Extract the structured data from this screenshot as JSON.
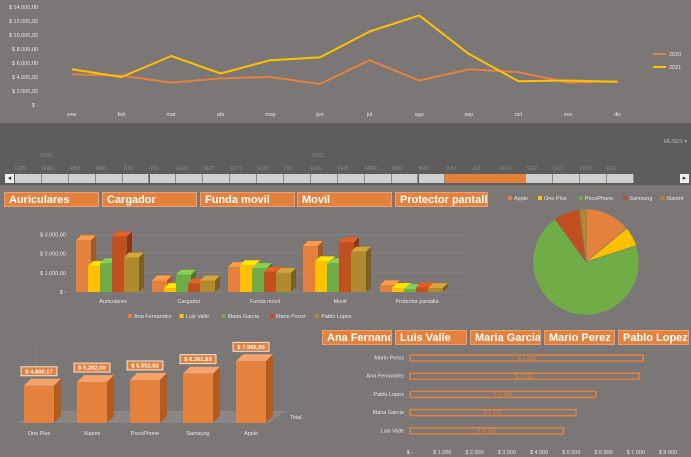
{
  "colors": {
    "bg": "#7b7777",
    "orange": "#e4813d",
    "orange_dark": "#c0501e",
    "yellow": "#ffc000",
    "green": "#70ad47",
    "brown": "#9e480e",
    "gold": "#b08a2e"
  },
  "line_chart": {
    "type": "line",
    "categories": [
      "ene",
      "feb",
      "mar",
      "abr",
      "may",
      "jun",
      "jul",
      "ago",
      "sep",
      "oct",
      "nov",
      "dic"
    ],
    "y_ticks": [
      "$ 14.000,00",
      "$ 12.000,00",
      "$ 10.000,00",
      "$ 8.000,00",
      "$ 6.000,00",
      "$ 4.000,00",
      "$ 2.000,00",
      "$ -"
    ],
    "ylim": [
      0,
      14000
    ],
    "series": [
      {
        "name": "2020",
        "color": "#e4813d",
        "values": [
          4400,
          4200,
          3200,
          3800,
          4000,
          3000,
          6400,
          3500,
          5100,
          4700,
          3200,
          3400
        ]
      },
      {
        "name": "2021",
        "color": "#ffc000",
        "values": [
          5100,
          4000,
          7000,
          4500,
          6400,
          6800,
          10500,
          12800,
          7300,
          3400,
          3500,
          3300
        ]
      }
    ]
  },
  "timeline": {
    "label": "MESES",
    "years": [
      "2020",
      "2021"
    ],
    "months": [
      "FEB",
      "MAR",
      "ABR",
      "MAY",
      "JUN",
      "JUL",
      "AGO",
      "SEP",
      "OCT",
      "NOV",
      "DIC",
      "ENE",
      "FEB",
      "MAR",
      "ABR",
      "MAY",
      "JUN",
      "JUL",
      "AGO",
      "SEP",
      "OCT",
      "NOV",
      "DIC"
    ],
    "selected_range": [
      16,
      18
    ],
    "left_arrow": "◂",
    "right_arrow": "▸"
  },
  "product_slicer": [
    "Auriculares",
    "Cargador",
    "Funda movil",
    "Movil",
    "Protector pantalla"
  ],
  "seller_slicer": [
    "Ana Fernandez",
    "Luis Valle",
    "Maria Garcia",
    "Mario Perez",
    "Pablo Lopez"
  ],
  "bar3d_chart": {
    "type": "bar",
    "categories": [
      "Auriculares",
      "Cargador",
      "Funda movil",
      "Movil",
      "Protector pantalla"
    ],
    "y_ticks": [
      "$ 3.000,00",
      "$ 2.000,00",
      "$ 1.000,00",
      "$ -"
    ],
    "ylim": [
      0,
      3500
    ],
    "series": [
      {
        "name": "Ana Fernandez",
        "color": "#e4813d",
        "values": [
          2700,
          600,
          1300,
          2400,
          350
        ]
      },
      {
        "name": "Luis Valle",
        "color": "#ffc000",
        "values": [
          1350,
          200,
          1400,
          1600,
          200
        ]
      },
      {
        "name": "Maria Garcia",
        "color": "#70ad47",
        "values": [
          1500,
          900,
          1250,
          1500,
          150
        ]
      },
      {
        "name": "Mario Perez",
        "color": "#c0501e",
        "values": [
          2900,
          450,
          1050,
          2600,
          250
        ]
      },
      {
        "name": "Pablo Lopez",
        "color": "#b08a2e",
        "values": [
          1800,
          600,
          1000,
          2100,
          200
        ]
      }
    ]
  },
  "pie_chart": {
    "type": "pie",
    "legend": [
      "Apple",
      "One Plus",
      "PocoPhone",
      "Samsung",
      "Xiaomi"
    ],
    "colors": [
      "#e4813d",
      "#ffc000",
      "#70ad47",
      "#c0501e",
      "#b08a2e"
    ],
    "values": [
      14,
      6,
      70,
      8,
      2
    ]
  },
  "brand_chart": {
    "type": "bar",
    "categories": [
      "One Plus",
      "Xiaomi",
      "PocoPhone",
      "Samsung",
      "Apple"
    ],
    "values": [
      4800.17,
      5282.0,
      5552.83,
      6361.83,
      7965.69
    ],
    "labels": [
      "$ 4.800,17",
      "$ 5.282,00",
      "$ 5.552,83",
      "$ 6.361,83",
      "$ 7.965,69"
    ],
    "axis_label": "Total"
  },
  "seller_chart": {
    "type": "bar",
    "categories": [
      "Mario Perez",
      "Ana Fernandez",
      "Pablo Lopez",
      "Maria Garcia",
      "Luis Valle"
    ],
    "values": [
      7235,
      7103,
      5758,
      5147,
      4759
    ],
    "labels": [
      "$ 7.235",
      "$ 7.103",
      "$ 5.758",
      "$ 5.147",
      "$ 4.759"
    ],
    "x_ticks": [
      "$ -",
      "$ 1.000",
      "$ 2.000",
      "$ 3.000",
      "$ 4.000",
      "$ 5.000",
      "$ 6.000",
      "$ 7.000",
      "$ 8.000"
    ],
    "xlim": [
      0,
      8000
    ]
  }
}
